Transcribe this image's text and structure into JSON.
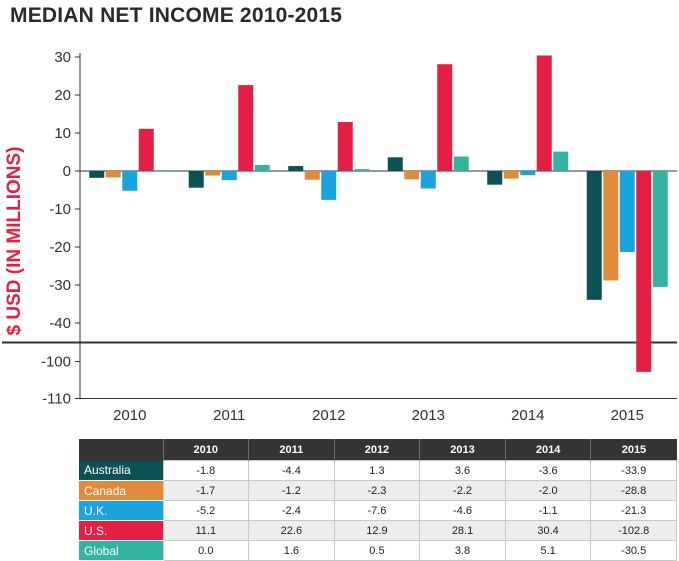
{
  "title": "MEDIAN NET INCOME 2010-2015",
  "colors": {
    "Australia": "#0d5154",
    "Canada": "#e08a3c",
    "U.K.": "#1ba3dd",
    "U.S.": "#e31f43",
    "Global": "#33b3a0"
  },
  "chart_data": {
    "type": "bar",
    "title": "MEDIAN NET INCOME 2010-2015",
    "xlabel": "",
    "ylabel": "$ USD (IN MILLIONS)",
    "categories": [
      "2010",
      "2011",
      "2012",
      "2013",
      "2014",
      "2015"
    ],
    "series": [
      {
        "name": "Australia",
        "values": [
          -1.8,
          -4.4,
          1.3,
          3.6,
          -3.6,
          -33.9
        ]
      },
      {
        "name": "Canada",
        "values": [
          -1.7,
          -1.2,
          -2.3,
          -2.2,
          -2.0,
          -28.8
        ]
      },
      {
        "name": "U.K.",
        "values": [
          -5.2,
          -2.4,
          -7.6,
          -4.6,
          -1.1,
          -21.3
        ]
      },
      {
        "name": "U.S.",
        "values": [
          11.1,
          22.6,
          12.9,
          28.1,
          30.4,
          -102.8
        ]
      },
      {
        "name": "Global",
        "values": [
          0.0,
          1.6,
          0.5,
          3.8,
          5.1,
          -30.5
        ]
      }
    ],
    "ylim": [
      -110,
      30
    ],
    "axis_break": [
      -45,
      -95
    ],
    "yticks_upper": [
      30,
      20,
      10,
      0,
      -10,
      -20,
      -30,
      -40
    ],
    "yticks_lower": [
      -100,
      -110
    ],
    "ytick_labels_upper": [
      "30",
      "20",
      "10",
      "0",
      "-10",
      "-20",
      "-30",
      "-40"
    ],
    "ytick_labels_lower": [
      "-100",
      "-110"
    ],
    "grid": false,
    "legend": "table-below"
  },
  "table": {
    "headers": [
      "2010",
      "2011",
      "2012",
      "2013",
      "2014",
      "2015"
    ],
    "rows": [
      {
        "label": "Australia",
        "cells": [
          "-1.8",
          "-4.4",
          "1.3",
          "3.6",
          "-3.6",
          "-33.9"
        ]
      },
      {
        "label": "Canada",
        "cells": [
          "-1.7",
          "-1.2",
          "-2.3",
          "-2.2",
          "-2.0",
          "-28.8"
        ]
      },
      {
        "label": "U.K.",
        "cells": [
          "-5.2",
          "-2.4",
          "-7.6",
          "-4.6",
          "-1.1",
          "-21.3"
        ]
      },
      {
        "label": "U.S.",
        "cells": [
          "11.1",
          "22.6",
          "12.9",
          "28.1",
          "30.4",
          "-102.8"
        ]
      },
      {
        "label": "Global",
        "cells": [
          "0.0",
          "1.6",
          "0.5",
          "3.8",
          "5.1",
          "-30.5"
        ]
      }
    ]
  }
}
